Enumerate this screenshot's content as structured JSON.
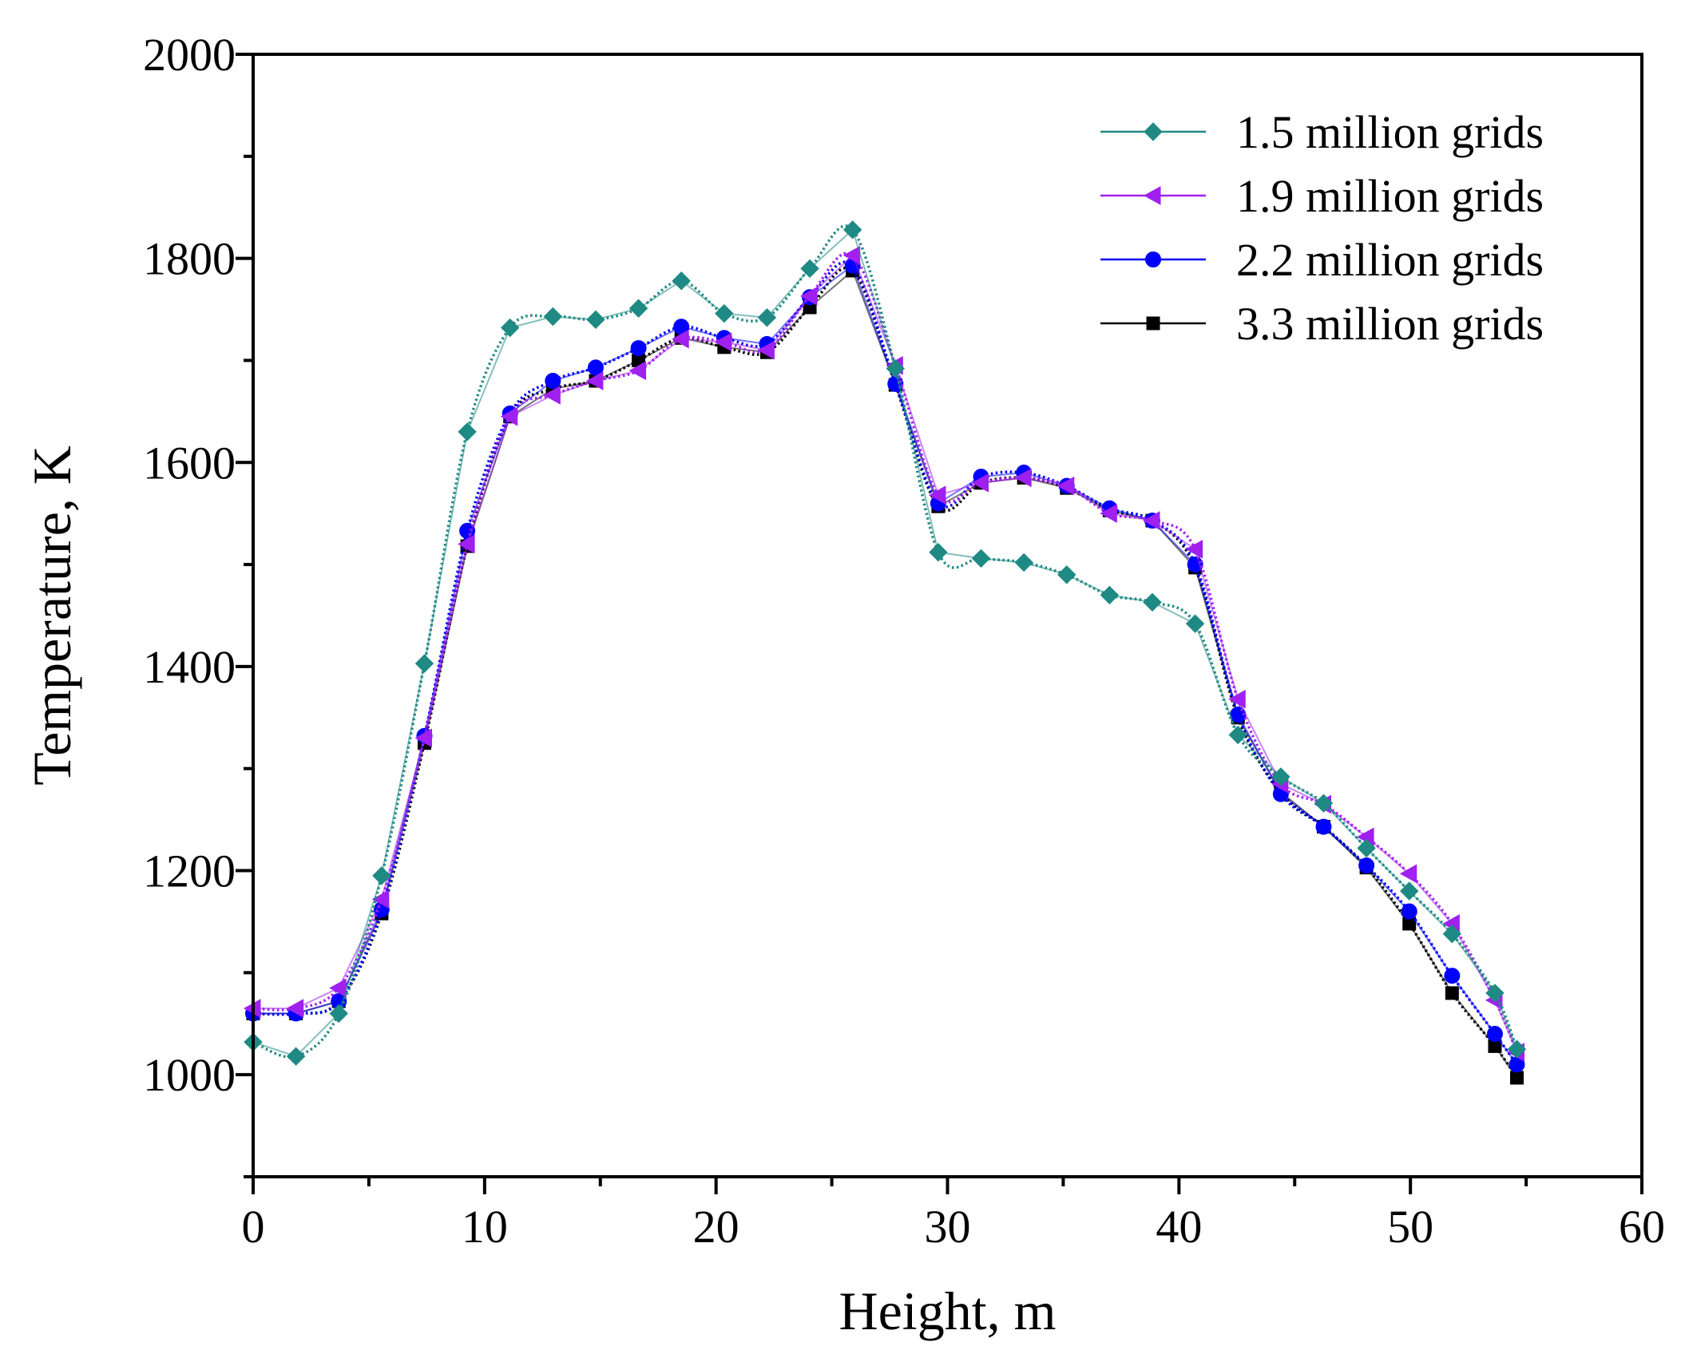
{
  "chart_data": {
    "type": "line",
    "title": "",
    "xlabel": "Height, m",
    "ylabel": "Temperature, K",
    "xlim": [
      0,
      60
    ],
    "ylim": [
      900,
      2000
    ],
    "xticks": [
      0,
      10,
      20,
      30,
      40,
      50,
      60
    ],
    "yticks": [
      1000,
      1200,
      1400,
      1600,
      1800,
      2000
    ],
    "grid": false,
    "legend_position": "top-right",
    "x": [
      0,
      1.85,
      3.7,
      5.55,
      7.4,
      9.25,
      11.1,
      12.95,
      14.8,
      16.65,
      18.5,
      20.35,
      22.2,
      24.05,
      25.9,
      27.75,
      29.6,
      31.45,
      33.3,
      35.15,
      37.0,
      38.85,
      40.7,
      42.55,
      44.4,
      46.25,
      48.1,
      49.95,
      51.8,
      53.65,
      54.6
    ],
    "series": [
      {
        "name": "1.5 million grids",
        "color": "#1f8a84",
        "marker": "diamond",
        "values": [
          1032,
          1018,
          1060,
          1195,
          1403,
          1630,
          1732,
          1743,
          1740,
          1751,
          1778,
          1746,
          1742,
          1790,
          1828,
          1692,
          1512,
          1506,
          1502,
          1490,
          1470,
          1463,
          1442,
          1333,
          1292,
          1266,
          1222,
          1180,
          1138,
          1080,
          1025
        ]
      },
      {
        "name": "1.9 million grids",
        "color": "#a020f0",
        "marker": "triangle-left",
        "values": [
          1065,
          1065,
          1085,
          1172,
          1330,
          1520,
          1645,
          1666,
          1680,
          1690,
          1721,
          1718,
          1710,
          1763,
          1803,
          1695,
          1568,
          1580,
          1585,
          1577,
          1550,
          1543,
          1515,
          1368,
          1285,
          1265,
          1233,
          1197,
          1148,
          1073,
          1022
        ]
      },
      {
        "name": "2.2 million grids",
        "color": "#0000ff",
        "marker": "circle",
        "values": [
          1060,
          1060,
          1072,
          1162,
          1332,
          1533,
          1648,
          1680,
          1693,
          1712,
          1733,
          1722,
          1716,
          1762,
          1793,
          1677,
          1560,
          1586,
          1590,
          1577,
          1555,
          1543,
          1500,
          1353,
          1275,
          1243,
          1205,
          1160,
          1097,
          1040,
          1010
        ]
      },
      {
        "name": "3.3 million grids",
        "color": "#000000",
        "marker": "square",
        "values": [
          1060,
          1060,
          1072,
          1158,
          1325,
          1518,
          1645,
          1672,
          1680,
          1700,
          1722,
          1713,
          1708,
          1752,
          1788,
          1676,
          1557,
          1580,
          1585,
          1575,
          1553,
          1543,
          1497,
          1350,
          1277,
          1243,
          1203,
          1148,
          1080,
          1028,
          997
        ]
      }
    ]
  }
}
